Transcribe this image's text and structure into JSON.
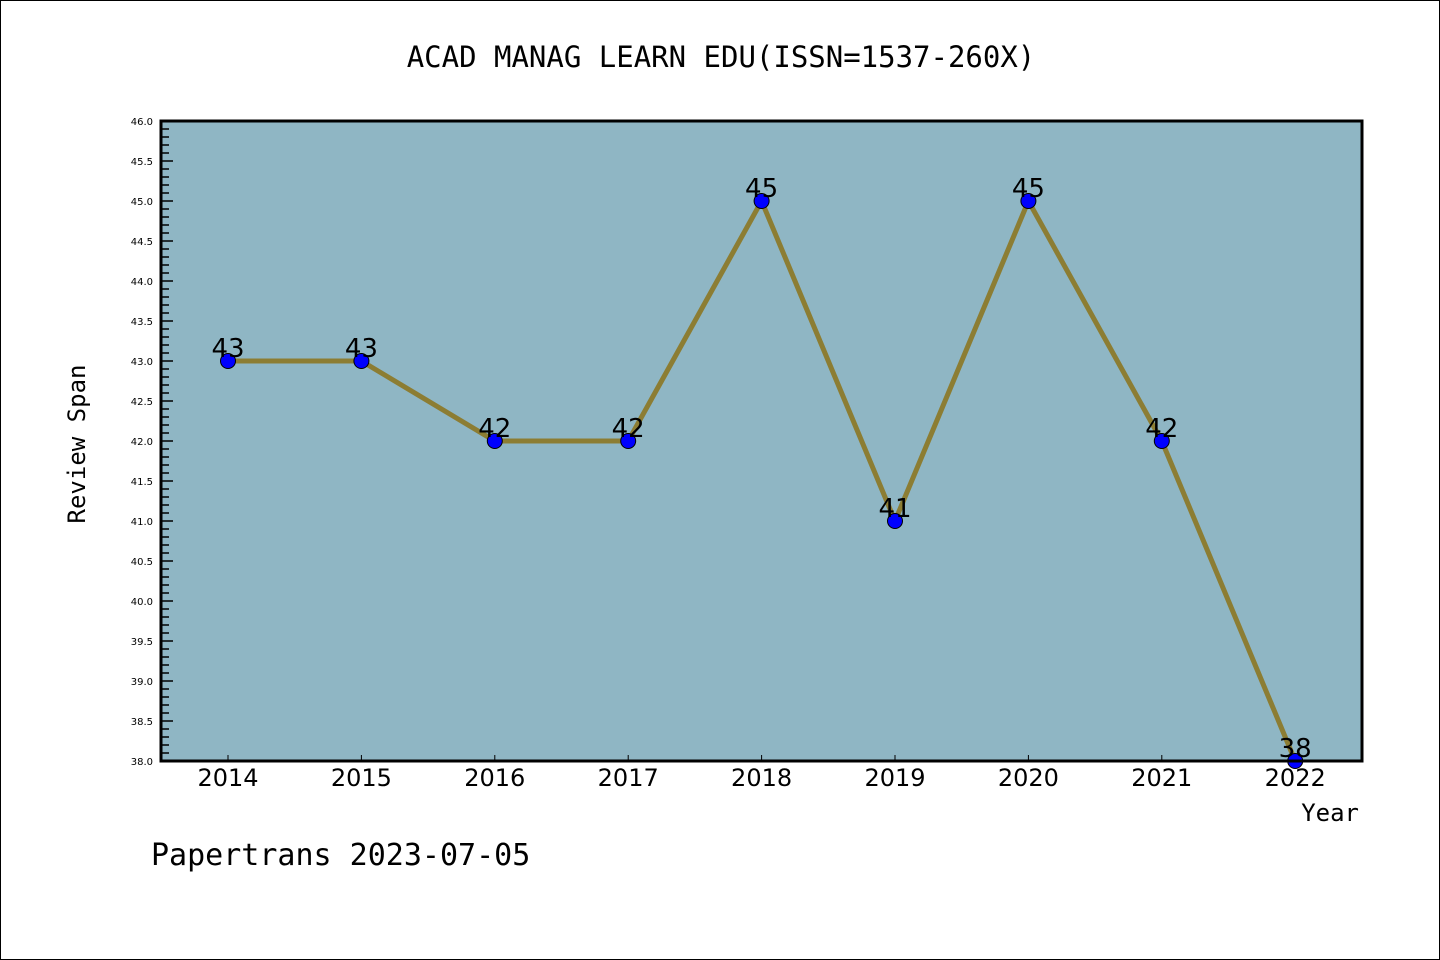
{
  "chart_data": {
    "type": "line",
    "title": "ACAD MANAG LEARN EDU(ISSN=1537-260X)",
    "xlabel": "Year",
    "ylabel": "Review Span",
    "categories": [
      "2014",
      "2015",
      "2016",
      "2017",
      "2018",
      "2019",
      "2020",
      "2021",
      "2022"
    ],
    "series": [
      {
        "name": "Review Span",
        "values": [
          43,
          43,
          42,
          42,
          45,
          41,
          45,
          42,
          38
        ]
      }
    ],
    "ylim": [
      38.0,
      46.0
    ],
    "yticks": [
      "38.0",
      "38.5",
      "39.0",
      "39.5",
      "40.0",
      "40.5",
      "41.0",
      "41.5",
      "42.0",
      "42.5",
      "43.0",
      "43.5",
      "44.0",
      "44.5",
      "45.0",
      "45.5",
      "46.0"
    ],
    "data_labels": [
      "43",
      "43",
      "42",
      "42",
      "45",
      "41",
      "45",
      "42",
      "38"
    ],
    "grid": false,
    "colors": {
      "background": "#8fb6c4",
      "line": "#8c7d33",
      "marker": "#0000ff"
    }
  },
  "footer": "Papertrans 2023-07-05"
}
